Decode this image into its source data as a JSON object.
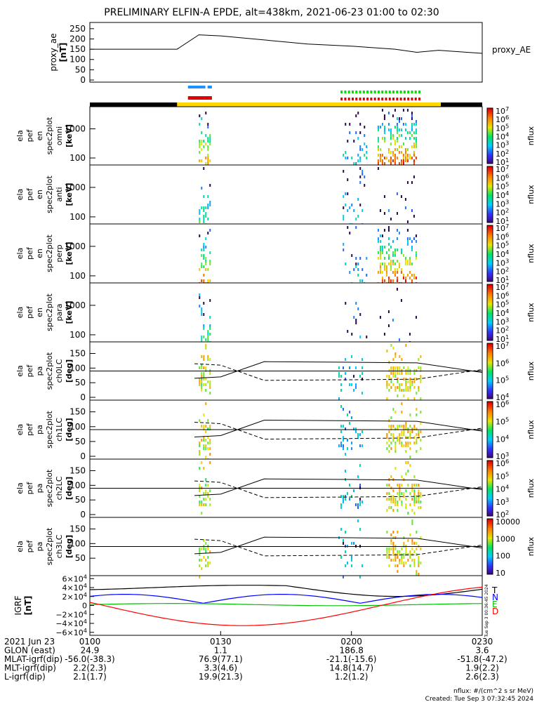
{
  "title": "PRELIMINARY ELFIN-A EPDE, alt=438km, 2021-06-23 01:00 to 02:30",
  "proxy_ae": {
    "ylabel": "proxy_ae\n[nT]",
    "legend": "proxy_AE",
    "yticks": [
      "250",
      "200",
      "150",
      "100",
      "50",
      "0"
    ]
  },
  "panels": [
    {
      "ylabel": [
        "ela",
        "pef",
        "en",
        "spec2plot",
        "omni",
        "[keV]"
      ],
      "yticks": [
        "1000",
        "100"
      ],
      "cbar_ticks": [
        "10^7",
        "10^6",
        "10^5",
        "10^4",
        "10^3",
        "10^2",
        "10^1"
      ],
      "cbar_label": "nflux"
    },
    {
      "ylabel": [
        "ela",
        "pef",
        "en",
        "spec2plot",
        "anti",
        "[keV]"
      ],
      "yticks": [
        "1000",
        "100"
      ],
      "cbar_ticks": [
        "10^7",
        "10^6",
        "10^5",
        "10^4",
        "10^3",
        "10^2",
        "10^1"
      ],
      "cbar_label": "nflux"
    },
    {
      "ylabel": [
        "ela",
        "pef",
        "en",
        "spec2plot",
        "perp",
        "[keV]"
      ],
      "yticks": [
        "1000",
        "100"
      ],
      "cbar_ticks": [
        "10^7",
        "10^6",
        "10^5",
        "10^4",
        "10^3",
        "10^2",
        "10^1"
      ],
      "cbar_label": "nflux"
    },
    {
      "ylabel": [
        "ela",
        "pef",
        "en",
        "spec2plot",
        "para",
        "[keV]"
      ],
      "yticks": [
        "1000",
        "100"
      ],
      "cbar_ticks": [
        "10^7",
        "10^6",
        "10^5",
        "10^4",
        "10^3",
        "10^2",
        "10^1"
      ],
      "cbar_label": "nflux"
    },
    {
      "ylabel": [
        "ela",
        "pef",
        "pa",
        "spec2plot",
        "ch0LC",
        "[deg]"
      ],
      "yticks": [
        "150",
        "100",
        "50",
        "0"
      ],
      "cbar_ticks": [
        "10^7",
        "10^6",
        "10^5",
        "10^4"
      ],
      "cbar_label": "nflux"
    },
    {
      "ylabel": [
        "ela",
        "pef",
        "pa",
        "spec2plot",
        "ch1LC",
        "[deg]"
      ],
      "yticks": [
        "150",
        "100",
        "50",
        "0"
      ],
      "cbar_ticks": [
        "10^6",
        "10^5",
        "10^4",
        "10^3"
      ],
      "cbar_label": "nflux"
    },
    {
      "ylabel": [
        "ela",
        "pef",
        "pa",
        "spec2plot",
        "ch2LC",
        "[deg]"
      ],
      "yticks": [
        "150",
        "100",
        "50",
        "0"
      ],
      "cbar_ticks": [
        "10^6",
        "10^5",
        "10^4",
        "10^3",
        "10^2"
      ],
      "cbar_label": "nflux"
    },
    {
      "ylabel": [
        "ela",
        "pef",
        "pa",
        "spec2plot",
        "ch3LC",
        "[deg]"
      ],
      "yticks": [
        "150",
        "100",
        "50"
      ],
      "cbar_ticks": [
        "10000",
        "1000",
        "100",
        "10"
      ],
      "cbar_label": "nflux"
    }
  ],
  "igrf": {
    "ylabel": "IGRF\n[nT]",
    "yticks": [
      "6×10^4",
      "4×10^4",
      "2×10^4",
      "0",
      "−2×10^4",
      "−4×10^4",
      "−6×10^4"
    ],
    "legend": [
      "T",
      "N",
      "E",
      "D"
    ],
    "legend_colors": [
      "#000000",
      "#0000ff",
      "#00c000",
      "#ff0000"
    ],
    "side_note": "Tue Sep  3 00:36:45 2024"
  },
  "colors": {
    "bar_black": "#000000",
    "bar_yellow": "#ffd700",
    "blue": "#1e90ff",
    "red": "#e00000",
    "green": "#00dd00"
  },
  "xaxis": {
    "ticks": [
      "0100",
      "0130",
      "0200",
      "0230"
    ],
    "rows": [
      {
        "label": "2021 Jun 23",
        "vals": [
          "",
          "",
          "",
          ""
        ]
      },
      {
        "label": "GLON (east)",
        "vals": [
          "24.9",
          "1.1",
          "186.8",
          "3.6"
        ]
      },
      {
        "label": "MLAT-igrf(dip)",
        "vals": [
          "-56.0(-38.3)",
          "76.9(77.1)",
          "-21.1(-15.6)",
          "-51.8(-47.2)"
        ]
      },
      {
        "label": "MLT-igrf(dip)",
        "vals": [
          "2.2(2.3)",
          "3.3(4.6)",
          "14.8(14.7)",
          "1.9(2.2)"
        ]
      },
      {
        "label": "L-igrf(dip)",
        "vals": [
          "2.1(1.7)",
          "19.9(21.3)",
          "1.2(1.2)",
          "2.6(2.3)"
        ]
      }
    ]
  },
  "footer": {
    "line1": "nflux: #/(cm^2 s sr MeV)",
    "line2": "Created: Tue Sep  3 07:32:45 2024"
  },
  "chart_data": {
    "type": "line",
    "title": "PRELIMINARY ELFIN-A EPDE, alt=438km, 2021-06-23 01:00 to 02:30",
    "x": [
      "0100",
      "0110",
      "0120",
      "0125",
      "0130",
      "0140",
      "0150",
      "0200",
      "0210",
      "0215",
      "0220",
      "0230"
    ],
    "series": [
      {
        "name": "proxy_AE",
        "values": [
          150,
          150,
          150,
          220,
          215,
          195,
          175,
          165,
          150,
          135,
          145,
          130
        ]
      }
    ],
    "ylim": [
      0,
      270
    ],
    "note": "Spectrogram panels show electron flux bursts near 01:25-01:27 and 02:00-02:15"
  }
}
